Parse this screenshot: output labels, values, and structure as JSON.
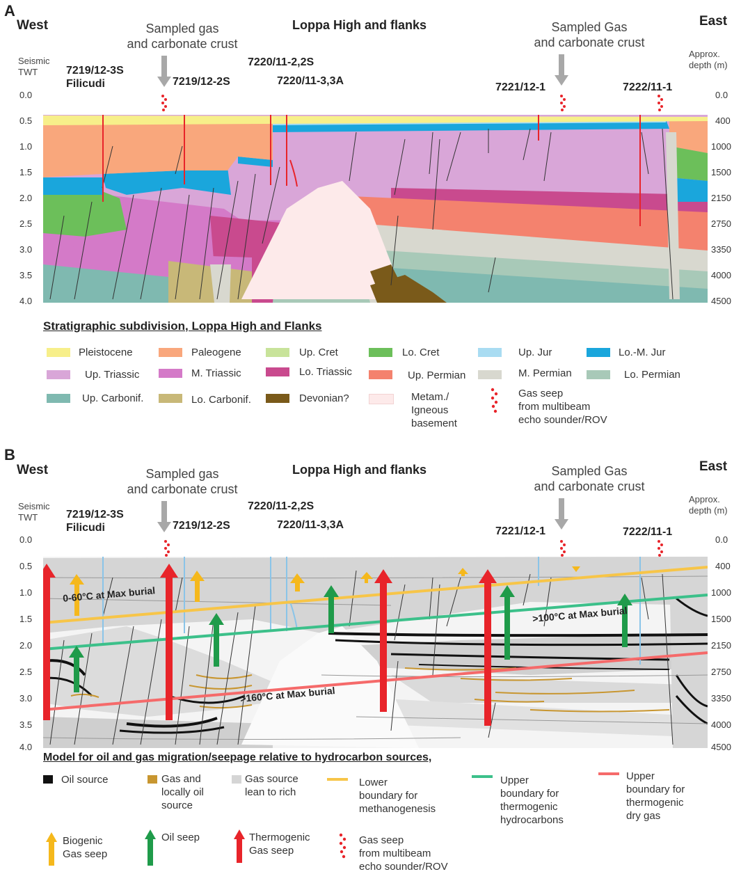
{
  "panel_a": {
    "letter": "A",
    "west": "West",
    "east": "East",
    "title": "Loppa High and flanks",
    "note_left": [
      "Sampled gas",
      "and carbonate crust"
    ],
    "note_right": [
      "Sampled Gas",
      "and carbonate crust"
    ],
    "axis_left": [
      "Seismic",
      "TWT"
    ],
    "axis_right": [
      "Approx.",
      "depth (m)"
    ],
    "twt_ticks": [
      "0.0",
      "0.5",
      "1.0",
      "1.5",
      "2.0",
      "2.5",
      "3.0",
      "3.5",
      "4.0"
    ],
    "depth_ticks": [
      "0.0",
      "400",
      "1000",
      "1500",
      "2150",
      "2750",
      "3350",
      "4000",
      "4500"
    ],
    "wells": {
      "w1a": "7219/12-3S",
      "w1b": "Filicudi",
      "w2": "7219/12-2S",
      "w3": "7220/11-2,2S",
      "w4": "7220/11-3,3A",
      "w5": "7221/12-1",
      "w6": "7222/11-1"
    },
    "legend_title": "Stratigraphic subdivision, Loppa High and Flanks",
    "legend": [
      {
        "label": "Pleistocene",
        "color": "#f7ef8a"
      },
      {
        "label": "Paleogene",
        "color": "#f9a77c"
      },
      {
        "label": "Up. Cret",
        "color": "#c8e39a"
      },
      {
        "label": "Lo. Cret",
        "color": "#6cbf5a"
      },
      {
        "label": "Up. Jur",
        "color": "#a9dcf2"
      },
      {
        "label": "Lo.-M. Jur",
        "color": "#1aa6dc"
      },
      {
        "label": "Up. Triassic",
        "color": "#d9a6d8"
      },
      {
        "label": "M. Triassic",
        "color": "#d47ac8"
      },
      {
        "label": "Lo. Triassic",
        "color": "#c94a8e"
      },
      {
        "label": "Up. Permian",
        "color": "#f4826e"
      },
      {
        "label": "M. Permian",
        "color": "#d8d8cf"
      },
      {
        "label": "Lo. Permian",
        "color": "#a8c9b8"
      },
      {
        "label": "Up. Carbonif.",
        "color": "#7fb9b0"
      },
      {
        "label": "Lo. Carbonif.",
        "color": "#c8b878"
      },
      {
        "label": "Devonian?",
        "color": "#7a5a1a"
      },
      {
        "label": [
          "Metam./",
          "Igneous",
          "basement"
        ],
        "color": "#fdeaea"
      }
    ],
    "seep_legend": [
      "Gas seep",
      "from multibeam",
      "echo sounder/ROV"
    ]
  },
  "panel_b": {
    "letter": "B",
    "west": "West",
    "east": "East",
    "title": "Loppa High and flanks",
    "note_left": [
      "Sampled gas",
      "and carbonate crust"
    ],
    "note_right": [
      "Sampled Gas",
      "and carbonate crust"
    ],
    "axis_left": [
      "Seismic",
      "TWT"
    ],
    "axis_right": [
      "Approx.",
      "depth (m)"
    ],
    "twt_ticks": [
      "0.0",
      "0.5",
      "1.0",
      "1.5",
      "2.0",
      "2.5",
      "3.0",
      "3.5",
      "4.0"
    ],
    "depth_ticks": [
      "0.0",
      "400",
      "1000",
      "1500",
      "2150",
      "2750",
      "3350",
      "4000",
      "4500"
    ],
    "wells": {
      "w1a": "7219/12-3S",
      "w1b": "Filicudi",
      "w2": "7219/12-2S",
      "w3": "7220/11-2,2S",
      "w4": "7220/11-3,3A",
      "w5": "7221/12-1",
      "w6": "7222/11-1"
    },
    "temp_labels": {
      "t60": "0-60°C at Max burial",
      "t100": ">100°C at Max burial",
      "t160": ">160°C at Max burial"
    },
    "legend_title": "Model for oil and gas migration/seepage relative to hydrocarbon sources,",
    "legend": {
      "oil_source": "Oil source",
      "gas_oil_source": [
        "Gas and",
        "locally oil",
        "source"
      ],
      "gas_source": [
        "Gas source",
        "lean to rich"
      ],
      "lower_meth": [
        "Lower",
        "boundary for",
        "methanogenesis"
      ],
      "upper_thermo": [
        "Upper",
        "boundary for",
        "thermogenic",
        "hydrocarbons"
      ],
      "upper_dry": [
        "Upper",
        "boundary for",
        "thermogenic",
        "dry gas"
      ],
      "biogenic": [
        "Biogenic",
        "Gas seep"
      ],
      "oil_seep": "Oil seep",
      "thermo_seep": [
        "Thermogenic",
        "Gas seep"
      ],
      "seep": [
        "Gas seep",
        "from multibeam",
        "echo sounder/ROV"
      ]
    },
    "colors": {
      "methano": "#f7c548",
      "thermo": "#3cc08a",
      "drygas": "#f56a6a",
      "biogenic": "#f5b81c",
      "oil": "#1f9b4a",
      "thermogenic": "#e8242a"
    }
  }
}
